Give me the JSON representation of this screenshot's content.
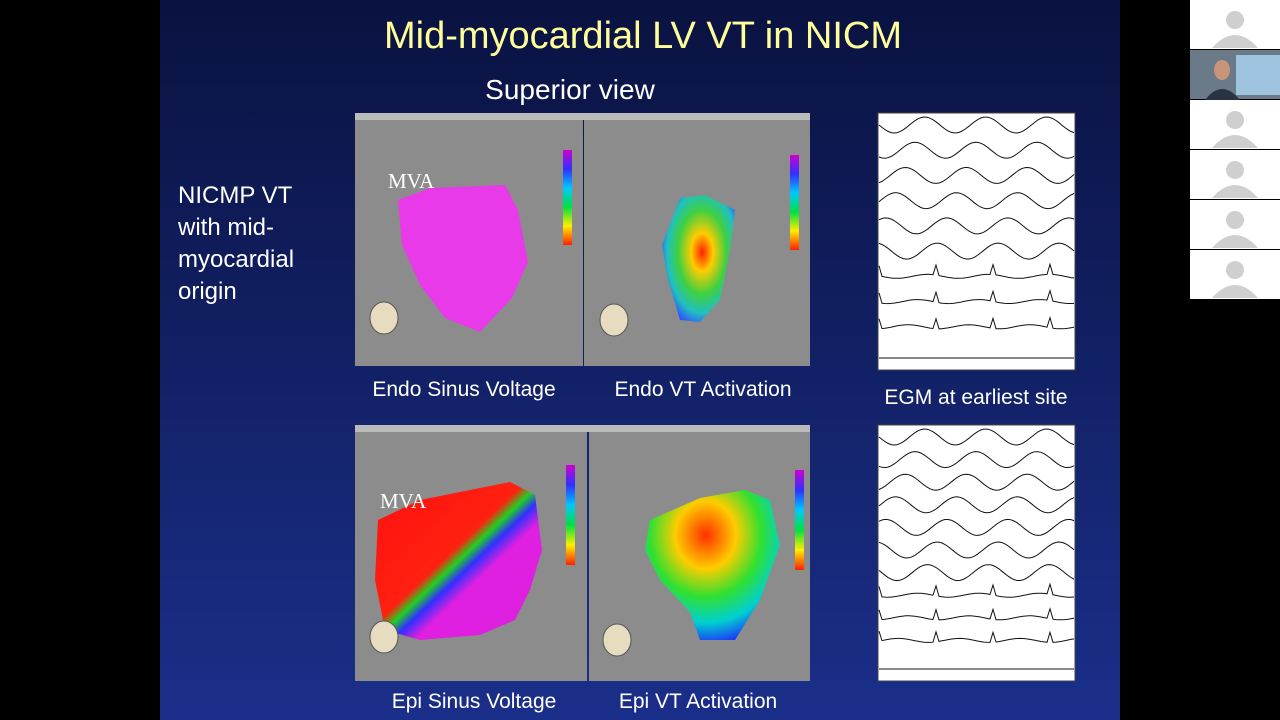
{
  "slide": {
    "title": "Mid-myocardial LV VT in NICM",
    "subtitle": "Superior view",
    "description_lines": [
      "NICMP VT",
      "with mid-",
      "myocardial",
      "origin"
    ],
    "panel_labels": [
      "Endo Sinus Voltage",
      "Endo VT Activation",
      "EGM at earliest  site",
      "Epi Sinus Voltage",
      "Epi VT Activation"
    ],
    "map_annotations": [
      "MVA",
      "MVA"
    ]
  }
}
